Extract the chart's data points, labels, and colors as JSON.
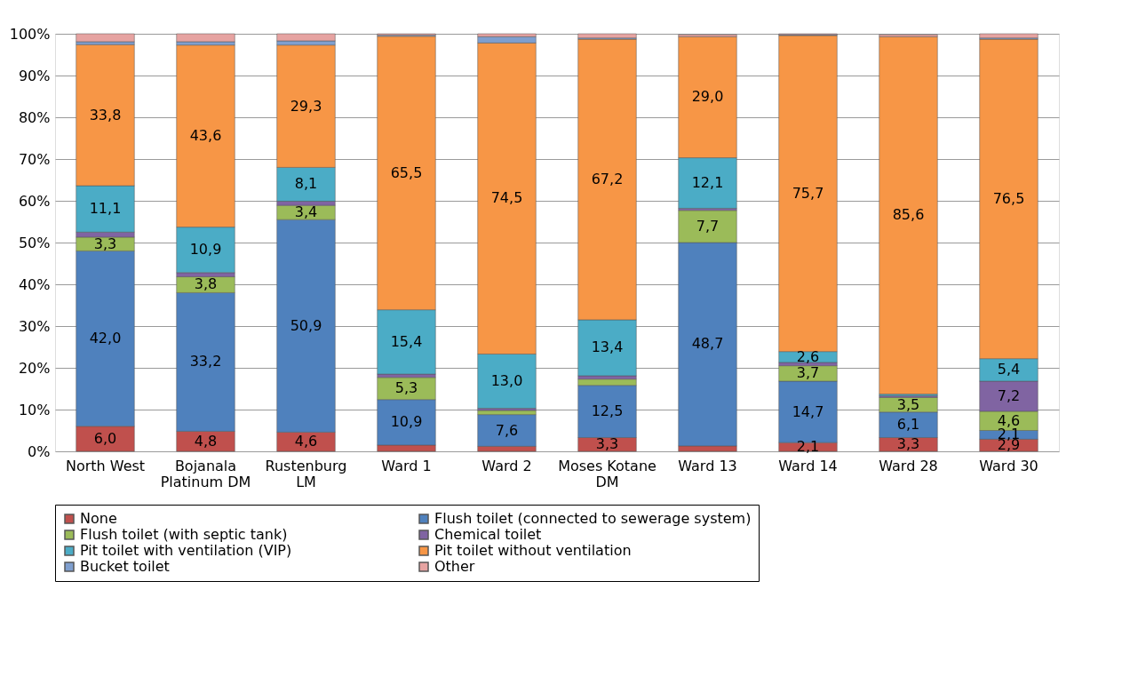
{
  "chart_data": {
    "type": "bar",
    "stacked": true,
    "categories": [
      "North West",
      "Bojanala Platinum DM",
      "Rustenburg LM",
      "Ward 1",
      "Ward 2",
      "Moses Kotane DM",
      "Ward 13",
      "Ward 14",
      "Ward 28",
      "Ward 30"
    ],
    "series": [
      {
        "name": "None",
        "color": "#c0504d",
        "values": [
          6.0,
          4.8,
          4.6,
          1.5,
          1.2,
          3.3,
          1.3,
          2.1,
          3.3,
          2.9
        ],
        "value_labels": [
          "6,0",
          "4,8",
          "4,6",
          null,
          null,
          "3,3",
          null,
          "2,1",
          "3,3",
          "2,9"
        ]
      },
      {
        "name": "Flush toilet (connected to sewerage system)",
        "color": "#4f81bd",
        "values": [
          42.0,
          33.2,
          50.9,
          10.9,
          7.6,
          12.5,
          48.7,
          14.7,
          6.1,
          2.1
        ],
        "value_labels": [
          "42,0",
          "33,2",
          "50,9",
          "10,9",
          "7,6",
          "12,5",
          "48,7",
          "14,7",
          "6,1",
          "2,1"
        ]
      },
      {
        "name": "Flush toilet (with septic tank)",
        "color": "#9bbb59",
        "values": [
          3.3,
          3.8,
          3.4,
          5.3,
          1.0,
          1.5,
          7.7,
          3.7,
          3.5,
          4.6
        ],
        "value_labels": [
          "3,3",
          "3,8",
          "3,4",
          "5,3",
          null,
          null,
          "7,7",
          "3,7",
          "3,5",
          "4,6"
        ]
      },
      {
        "name": "Chemical toilet",
        "color": "#8064a2",
        "values": [
          1.2,
          1.0,
          1.0,
          0.8,
          0.5,
          0.8,
          0.5,
          0.8,
          0.4,
          7.2
        ],
        "value_labels": [
          null,
          null,
          null,
          null,
          null,
          null,
          null,
          null,
          null,
          "7,2"
        ]
      },
      {
        "name": "Pit toilet with ventilation (VIP)",
        "color": "#4bacc6",
        "values": [
          11.1,
          10.9,
          8.1,
          15.4,
          13.0,
          13.4,
          12.1,
          2.6,
          0.4,
          5.4
        ],
        "value_labels": [
          "11,1",
          "10,9",
          "8,1",
          "15,4",
          "13,0",
          "13,4",
          "12,1",
          "2,6",
          null,
          "5,4"
        ]
      },
      {
        "name": "Pit toilet without ventilation",
        "color": "#f79646",
        "values": [
          33.8,
          43.6,
          29.3,
          65.5,
          74.5,
          67.2,
          29.0,
          75.7,
          85.6,
          76.5
        ],
        "value_labels": [
          "33,8",
          "43,6",
          "29,3",
          "65,5",
          "74,5",
          "67,2",
          "29,0",
          "75,7",
          "85,6",
          "76,5"
        ]
      },
      {
        "name": "Bucket toilet",
        "color": "#7f9fcf",
        "values": [
          0.7,
          0.8,
          1.0,
          0.3,
          1.5,
          0.3,
          null,
          0.2,
          null,
          0.3
        ],
        "value_labels": [
          null,
          null,
          null,
          null,
          null,
          null,
          null,
          null,
          null,
          null
        ]
      },
      {
        "name": "Other",
        "color": "#e6a3a1",
        "values": [
          1.9,
          1.9,
          1.7,
          0.3,
          0.7,
          1.0,
          0.5,
          0.2,
          0.5,
          1.0
        ],
        "value_labels": [
          null,
          null,
          null,
          null,
          null,
          null,
          null,
          null,
          null,
          null
        ]
      }
    ],
    "ylim": [
      0,
      100
    ],
    "yticks": [
      {
        "value": 0,
        "label": "0%"
      },
      {
        "value": 10,
        "label": "10%"
      },
      {
        "value": 20,
        "label": "20%"
      },
      {
        "value": 30,
        "label": "30%"
      },
      {
        "value": 40,
        "label": "40%"
      },
      {
        "value": 50,
        "label": "50%"
      },
      {
        "value": 60,
        "label": "60%"
      },
      {
        "value": 70,
        "label": "70%"
      },
      {
        "value": 80,
        "label": "80%"
      },
      {
        "value": 90,
        "label": "90%"
      },
      {
        "value": 100,
        "label": "100%"
      }
    ],
    "grid": "y",
    "legend": "bottom"
  }
}
